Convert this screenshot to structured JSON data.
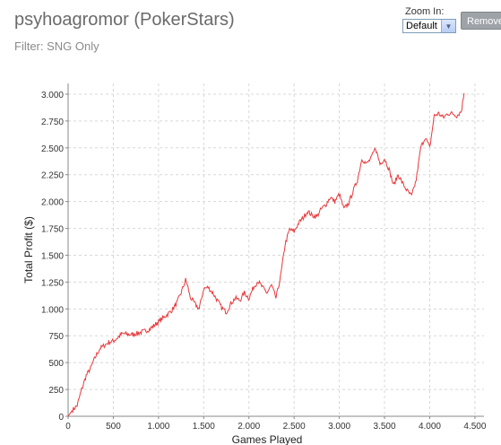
{
  "header": {
    "title": "psyhoagromor (PokerStars)",
    "filter": "Filter: SNG Only"
  },
  "controls": {
    "zoom_label": "Zoom In:",
    "zoom_value": "Default",
    "remove_label": "Remove"
  },
  "colors": {
    "line": "#e8393c",
    "grid": "#d8d8d8",
    "axis": "#888888"
  },
  "chart_data": {
    "type": "line",
    "title": "",
    "xlabel": "Games Played",
    "ylabel": "Total Profit ($)",
    "xlim": [
      0,
      4600
    ],
    "ylim": [
      0,
      3100
    ],
    "xticks": [
      0,
      500,
      1000,
      1500,
      2000,
      2500,
      3000,
      3500,
      4000,
      4500
    ],
    "xtick_labels": [
      "0",
      "500",
      "1.000",
      "1.500",
      "2.000",
      "2.500",
      "3.000",
      "3.500",
      "4.000",
      "4.500"
    ],
    "yticks": [
      0,
      250,
      500,
      750,
      1000,
      1250,
      1500,
      1750,
      2000,
      2250,
      2500,
      2750,
      3000
    ],
    "ytick_labels": [
      "0",
      "250",
      "500",
      "750",
      "1.000",
      "1.250",
      "1.500",
      "1.750",
      "2.000",
      "2.250",
      "2.500",
      "2.750",
      "3.000"
    ],
    "grid": true,
    "series": [
      {
        "x": [
          0,
          50,
          100,
          150,
          200,
          250,
          300,
          350,
          400,
          450,
          500,
          600,
          700,
          800,
          900,
          1000,
          1100,
          1150,
          1200,
          1250,
          1300,
          1320,
          1350,
          1400,
          1450,
          1500,
          1550,
          1600,
          1650,
          1700,
          1750,
          1800,
          1850,
          1900,
          1950,
          2000,
          2050,
          2100,
          2150,
          2200,
          2250,
          2300,
          2350,
          2400,
          2450,
          2500,
          2550,
          2600,
          2650,
          2700,
          2750,
          2800,
          2850,
          2900,
          2950,
          3000,
          3050,
          3100,
          3150,
          3200,
          3250,
          3300,
          3350,
          3400,
          3450,
          3500,
          3550,
          3600,
          3650,
          3700,
          3750,
          3800,
          3850,
          3900,
          3950,
          4000,
          4050,
          4100,
          4150,
          4200,
          4250,
          4300,
          4350,
          4370,
          4380
        ],
        "y": [
          0,
          60,
          100,
          250,
          380,
          450,
          550,
          630,
          660,
          690,
          700,
          770,
          760,
          780,
          810,
          880,
          950,
          990,
          1050,
          1150,
          1270,
          1220,
          1110,
          1050,
          1000,
          1190,
          1200,
          1150,
          1080,
          1010,
          970,
          1050,
          1100,
          1080,
          1150,
          1100,
          1200,
          1260,
          1200,
          1150,
          1220,
          1100,
          1300,
          1600,
          1740,
          1720,
          1800,
          1850,
          1910,
          1870,
          1860,
          1930,
          1970,
          2040,
          2000,
          2070,
          1930,
          1980,
          2090,
          2200,
          2400,
          2350,
          2400,
          2500,
          2350,
          2400,
          2300,
          2150,
          2250,
          2170,
          2100,
          2050,
          2200,
          2500,
          2600,
          2500,
          2800,
          2820,
          2780,
          2820,
          2820,
          2800,
          2840,
          2960,
          3010
        ]
      }
    ]
  }
}
